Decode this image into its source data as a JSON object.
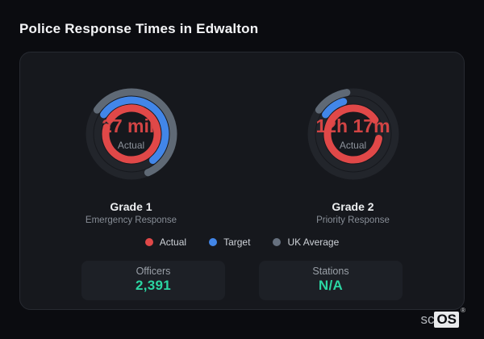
{
  "title": "Police Response Times in Edwalton",
  "colors": {
    "actual": "#e04848",
    "target": "#4286e8",
    "uk_average": "#66707e",
    "stat_value": "#2bd5a2",
    "card_bg": "#16181d",
    "track": "#22252b"
  },
  "gauges": [
    {
      "value": "27 min",
      "value_label": "Actual",
      "grade": "Grade 1",
      "subtitle": "Emergency Response",
      "rings": [
        {
          "series": "uk_average",
          "name": "UK Average",
          "color": "#5f6975",
          "start_deg": 305,
          "sweep_deg": 212
        },
        {
          "series": "target",
          "name": "Target",
          "color": "#4286e8",
          "start_deg": 305,
          "sweep_deg": 196
        },
        {
          "series": "actual",
          "name": "Actual",
          "color": "#e04848",
          "start_deg": 303,
          "sweep_deg": 342
        }
      ]
    },
    {
      "value": "12h 17m",
      "value_label": "Actual",
      "grade": "Grade 2",
      "subtitle": "Priority Response",
      "rings": [
        {
          "series": "uk_average",
          "name": "UK Average",
          "color": "#5f6975",
          "start_deg": 305,
          "sweep_deg": 46
        },
        {
          "series": "target",
          "name": "Target",
          "color": "#4286e8",
          "start_deg": 305,
          "sweep_deg": 38
        },
        {
          "series": "actual",
          "name": "Actual",
          "color": "#e04848",
          "start_deg": 100,
          "sweep_deg": 317
        }
      ]
    }
  ],
  "legend": [
    {
      "label": "Actual",
      "color": "#e04848"
    },
    {
      "label": "Target",
      "color": "#4286e8"
    },
    {
      "label": "UK Average",
      "color": "#66707e"
    }
  ],
  "stats": [
    {
      "label": "Officers",
      "value": "2,391"
    },
    {
      "label": "Stations",
      "value": "N/A"
    }
  ],
  "branding": {
    "prefix": "sc",
    "suffix": "OS",
    "registered": "®"
  },
  "chart_data": [
    {
      "type": "radial-gauge",
      "title": "Grade 1 Emergency Response",
      "center_value": "27 min",
      "center_label": "Actual",
      "max_deg": 360,
      "series": [
        {
          "name": "Actual",
          "sweep_deg": 342,
          "color": "#e04848"
        },
        {
          "name": "Target",
          "sweep_deg": 196,
          "color": "#4286e8"
        },
        {
          "name": "UK Average",
          "sweep_deg": 212,
          "color": "#5f6975"
        }
      ],
      "legend_position": "bottom"
    },
    {
      "type": "radial-gauge",
      "title": "Grade 2 Priority Response",
      "center_value": "12h 17m",
      "center_label": "Actual",
      "max_deg": 360,
      "series": [
        {
          "name": "Actual",
          "sweep_deg": 317,
          "color": "#e04848"
        },
        {
          "name": "Target",
          "sweep_deg": 38,
          "color": "#4286e8"
        },
        {
          "name": "UK Average",
          "sweep_deg": 46,
          "color": "#5f6975"
        }
      ],
      "legend_position": "bottom"
    }
  ]
}
